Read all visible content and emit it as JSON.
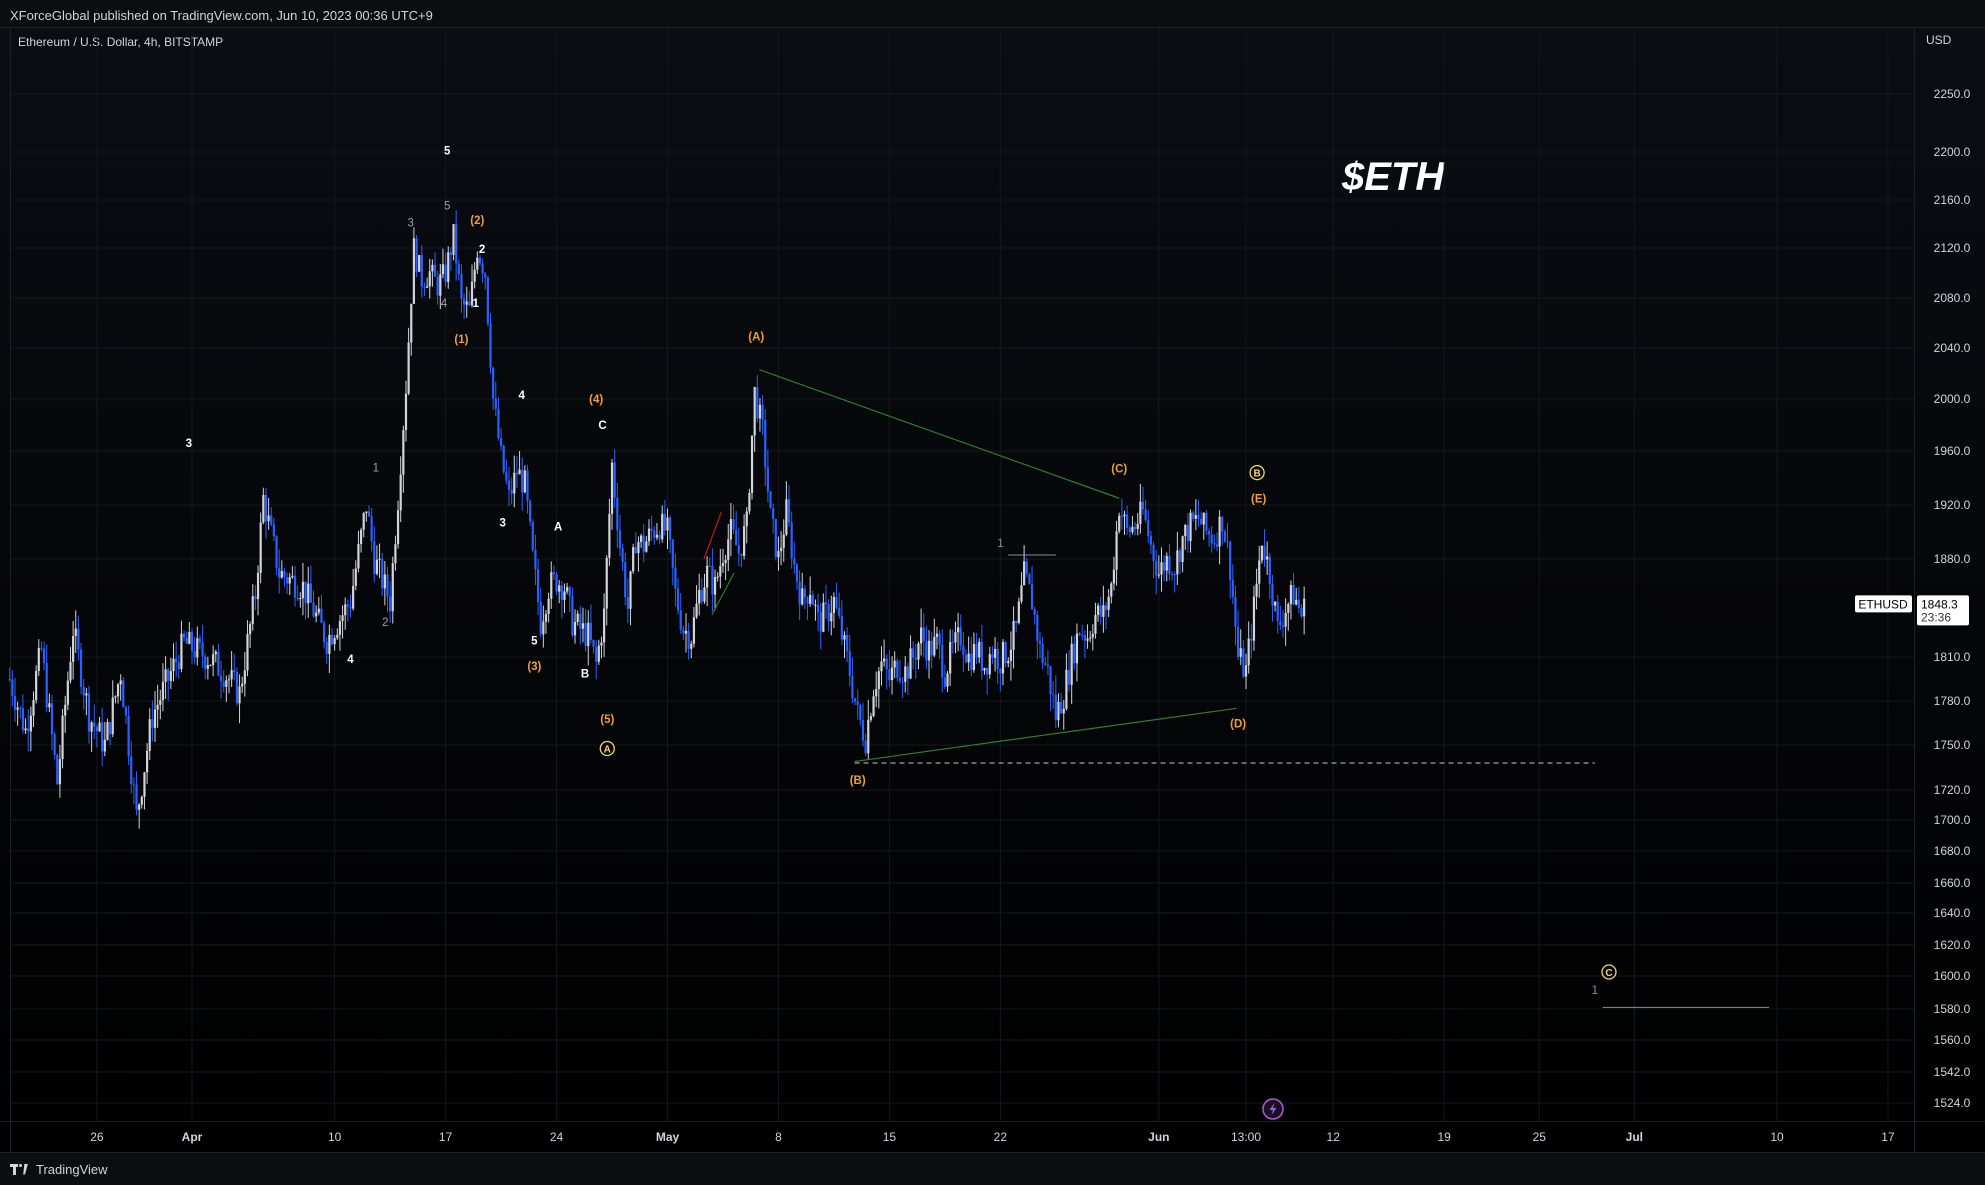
{
  "header": {
    "published_by": "XForceGlobal published on TradingView.com, Jun 10, 2023 00:36 UTC+9"
  },
  "footer": {
    "brand": "TradingView"
  },
  "chart_data": {
    "type": "candlestick",
    "symbol_line": "Ethereum / U.S. Dollar, 4h, BITSTAMP",
    "title": "$ETH",
    "currency": "USD",
    "ylim": [
      1515,
      2285
    ],
    "y_ticks": [
      {
        "label": "2250.0",
        "value": 2250
      },
      {
        "label": "2200.0",
        "value": 2200
      },
      {
        "label": "2160.0",
        "value": 2160
      },
      {
        "label": "2120.0",
        "value": 2120
      },
      {
        "label": "2080.0",
        "value": 2080
      },
      {
        "label": "2040.0",
        "value": 2040
      },
      {
        "label": "2000.0",
        "value": 2000
      },
      {
        "label": "1960.0",
        "value": 1960
      },
      {
        "label": "1920.0",
        "value": 1920
      },
      {
        "label": "1880.0",
        "value": 1880
      },
      {
        "label": "1810.0",
        "value": 1810
      },
      {
        "label": "1780.0",
        "value": 1780
      },
      {
        "label": "1750.0",
        "value": 1750
      },
      {
        "label": "1720.0",
        "value": 1720
      },
      {
        "label": "1700.0",
        "value": 1700
      },
      {
        "label": "1680.0",
        "value": 1680
      },
      {
        "label": "1660.0",
        "value": 1660
      },
      {
        "label": "1640.0",
        "value": 1640
      },
      {
        "label": "1620.0",
        "value": 1620
      },
      {
        "label": "1600.0",
        "value": 1600
      },
      {
        "label": "1580.0",
        "value": 1580
      },
      {
        "label": "1560.0",
        "value": 1560
      },
      {
        "label": "1542.0",
        "value": 1542
      },
      {
        "label": "1524.0",
        "value": 1524
      }
    ],
    "x_ticks": [
      {
        "label": "26",
        "day": -6,
        "bold": false
      },
      {
        "label": "Apr",
        "day": 0,
        "bold": true
      },
      {
        "label": "10",
        "day": 9,
        "bold": false
      },
      {
        "label": "17",
        "day": 16,
        "bold": false
      },
      {
        "label": "24",
        "day": 23,
        "bold": false
      },
      {
        "label": "May",
        "day": 30,
        "bold": true
      },
      {
        "label": "8",
        "day": 37,
        "bold": false
      },
      {
        "label": "15",
        "day": 44,
        "bold": false
      },
      {
        "label": "22",
        "day": 51,
        "bold": false
      },
      {
        "label": "Jun",
        "day": 61,
        "bold": true
      },
      {
        "label": "13:00",
        "day": 66.5,
        "bold": false
      },
      {
        "label": "12",
        "day": 72,
        "bold": false
      },
      {
        "label": "19",
        "day": 79,
        "bold": false
      },
      {
        "label": "25",
        "day": 85,
        "bold": false
      },
      {
        "label": "Jul",
        "day": 91,
        "bold": true
      },
      {
        "label": "10",
        "day": 100,
        "bold": false
      },
      {
        "label": "17",
        "day": 107,
        "bold": false
      }
    ],
    "price_path": [
      {
        "day": -11.5,
        "price": 1795
      },
      {
        "day": -10.5,
        "price": 1760
      },
      {
        "day": -9.5,
        "price": 1815
      },
      {
        "day": -8.5,
        "price": 1725
      },
      {
        "day": -7.5,
        "price": 1830
      },
      {
        "day": -6.5,
        "price": 1770
      },
      {
        "day": -5.5,
        "price": 1750
      },
      {
        "day": -4.5,
        "price": 1800
      },
      {
        "day": -3.5,
        "price": 1702
      },
      {
        "day": -2.5,
        "price": 1770
      },
      {
        "day": -1.5,
        "price": 1795
      },
      {
        "day": -0.5,
        "price": 1820
      },
      {
        "day": 1.0,
        "price": 1810
      },
      {
        "day": 2.0,
        "price": 1800
      },
      {
        "day": 3.0,
        "price": 1785
      },
      {
        "day": 4.0,
        "price": 1855
      },
      {
        "day": 4.5,
        "price": 1925
      },
      {
        "day": 5.5,
        "price": 1870
      },
      {
        "day": 7.0,
        "price": 1860
      },
      {
        "day": 8.5,
        "price": 1822
      },
      {
        "day": 10.0,
        "price": 1850
      },
      {
        "day": 11.0,
        "price": 1920
      },
      {
        "day": 11.5,
        "price": 1880
      },
      {
        "day": 12.5,
        "price": 1850
      },
      {
        "day": 13.0,
        "price": 1925
      },
      {
        "day": 13.5,
        "price": 2010
      },
      {
        "day": 14.0,
        "price": 2120
      },
      {
        "day": 14.5,
        "price": 2095
      },
      {
        "day": 15.0,
        "price": 2100
      },
      {
        "day": 15.5,
        "price": 2090
      },
      {
        "day": 16.0,
        "price": 2100
      },
      {
        "day": 16.5,
        "price": 2130
      },
      {
        "day": 17.0,
        "price": 2075
      },
      {
        "day": 17.5,
        "price": 2070
      },
      {
        "day": 18.0,
        "price": 2120
      },
      {
        "day": 18.5,
        "price": 2100
      },
      {
        "day": 19.0,
        "price": 2000
      },
      {
        "day": 19.5,
        "price": 1955
      },
      {
        "day": 20.0,
        "price": 1925
      },
      {
        "day": 20.5,
        "price": 1945
      },
      {
        "day": 21.0,
        "price": 1935
      },
      {
        "day": 21.5,
        "price": 1880
      },
      {
        "day": 22.0,
        "price": 1835
      },
      {
        "day": 22.5,
        "price": 1860
      },
      {
        "day": 23.0,
        "price": 1865
      },
      {
        "day": 23.5,
        "price": 1860
      },
      {
        "day": 24.0,
        "price": 1835
      },
      {
        "day": 25.0,
        "price": 1825
      },
      {
        "day": 25.5,
        "price": 1805
      },
      {
        "day": 26.0,
        "price": 1840
      },
      {
        "day": 26.5,
        "price": 1950
      },
      {
        "day": 27.0,
        "price": 1890
      },
      {
        "day": 27.5,
        "price": 1845
      },
      {
        "day": 28.0,
        "price": 1895
      },
      {
        "day": 28.5,
        "price": 1890
      },
      {
        "day": 29.0,
        "price": 1900
      },
      {
        "day": 29.5,
        "price": 1905
      },
      {
        "day": 30.0,
        "price": 1900
      },
      {
        "day": 30.5,
        "price": 1855
      },
      {
        "day": 31.0,
        "price": 1830
      },
      {
        "day": 31.5,
        "price": 1825
      },
      {
        "day": 32.0,
        "price": 1855
      },
      {
        "day": 32.5,
        "price": 1870
      },
      {
        "day": 33.0,
        "price": 1860
      },
      {
        "day": 33.5,
        "price": 1885
      },
      {
        "day": 34.0,
        "price": 1900
      },
      {
        "day": 34.5,
        "price": 1885
      },
      {
        "day": 35.0,
        "price": 1905
      },
      {
        "day": 35.5,
        "price": 2005
      },
      {
        "day": 36.0,
        "price": 1975
      },
      {
        "day": 36.5,
        "price": 1910
      },
      {
        "day": 37.0,
        "price": 1880
      },
      {
        "day": 37.5,
        "price": 1915
      },
      {
        "day": 38.0,
        "price": 1875
      },
      {
        "day": 38.5,
        "price": 1850
      },
      {
        "day": 39.0,
        "price": 1860
      },
      {
        "day": 39.5,
        "price": 1835
      },
      {
        "day": 40.0,
        "price": 1840
      },
      {
        "day": 40.5,
        "price": 1850
      },
      {
        "day": 41.0,
        "price": 1825
      },
      {
        "day": 41.5,
        "price": 1800
      },
      {
        "day": 42.0,
        "price": 1770
      },
      {
        "day": 42.5,
        "price": 1755
      },
      {
        "day": 43.0,
        "price": 1790
      },
      {
        "day": 43.5,
        "price": 1805
      },
      {
        "day": 44.0,
        "price": 1795
      },
      {
        "day": 44.5,
        "price": 1805
      },
      {
        "day": 45.0,
        "price": 1800
      },
      {
        "day": 45.5,
        "price": 1810
      },
      {
        "day": 46.0,
        "price": 1825
      },
      {
        "day": 46.5,
        "price": 1815
      },
      {
        "day": 47.0,
        "price": 1820
      },
      {
        "day": 47.5,
        "price": 1800
      },
      {
        "day": 48.0,
        "price": 1815
      },
      {
        "day": 48.5,
        "price": 1825
      },
      {
        "day": 49.0,
        "price": 1810
      },
      {
        "day": 49.5,
        "price": 1815
      },
      {
        "day": 50.0,
        "price": 1805
      },
      {
        "day": 50.5,
        "price": 1815
      },
      {
        "day": 51.0,
        "price": 1808
      },
      {
        "day": 51.5,
        "price": 1815
      },
      {
        "day": 52.0,
        "price": 1830
      },
      {
        "day": 52.5,
        "price": 1868
      },
      {
        "day": 53.0,
        "price": 1850
      },
      {
        "day": 53.5,
        "price": 1815
      },
      {
        "day": 54.0,
        "price": 1800
      },
      {
        "day": 54.5,
        "price": 1770
      },
      {
        "day": 55.0,
        "price": 1785
      },
      {
        "day": 55.5,
        "price": 1810
      },
      {
        "day": 56.0,
        "price": 1830
      },
      {
        "day": 56.5,
        "price": 1825
      },
      {
        "day": 57.0,
        "price": 1840
      },
      {
        "day": 57.5,
        "price": 1840
      },
      {
        "day": 58.0,
        "price": 1860
      },
      {
        "day": 58.5,
        "price": 1920
      },
      {
        "day": 59.0,
        "price": 1900
      },
      {
        "day": 59.5,
        "price": 1905
      },
      {
        "day": 60.0,
        "price": 1915
      },
      {
        "day": 60.5,
        "price": 1890
      },
      {
        "day": 61.0,
        "price": 1870
      },
      {
        "day": 61.5,
        "price": 1880
      },
      {
        "day": 62.0,
        "price": 1875
      },
      {
        "day": 62.5,
        "price": 1895
      },
      {
        "day": 63.0,
        "price": 1905
      },
      {
        "day": 63.5,
        "price": 1910
      },
      {
        "day": 64.0,
        "price": 1900
      },
      {
        "day": 64.5,
        "price": 1895
      },
      {
        "day": 65.0,
        "price": 1910
      },
      {
        "day": 65.5,
        "price": 1875
      },
      {
        "day": 66.0,
        "price": 1810
      },
      {
        "day": 66.5,
        "price": 1800
      },
      {
        "day": 67.0,
        "price": 1845
      },
      {
        "day": 67.5,
        "price": 1895
      },
      {
        "day": 68.0,
        "price": 1870
      },
      {
        "day": 68.5,
        "price": 1830
      },
      {
        "day": 69.0,
        "price": 1845
      },
      {
        "day": 69.5,
        "price": 1855
      },
      {
        "day": 70.0,
        "price": 1840
      },
      {
        "day": 70.3,
        "price": 1848
      }
    ],
    "trendlines": [
      {
        "name": "triangle-upper-line",
        "color": "#2e7d32",
        "from": {
          "day": 35.8,
          "price": 2023
        },
        "to": {
          "day": 58.5,
          "price": 1925
        }
      },
      {
        "name": "triangle-lower-line",
        "color": "#2e7d32",
        "from": {
          "day": 41.8,
          "price": 1739
        },
        "to": {
          "day": 65.9,
          "price": 1775
        }
      },
      {
        "name": "red-channel-line",
        "color": "#b71c1c",
        "from": {
          "day": 32.3,
          "price": 1880
        },
        "to": {
          "day": 33.4,
          "price": 1915
        }
      },
      {
        "name": "green-channel-line",
        "color": "#2e7d32",
        "from": {
          "day": 32.8,
          "price": 1840
        },
        "to": {
          "day": 34.2,
          "price": 1870
        }
      }
    ],
    "support_line": {
      "price": 1738,
      "from_day": 41.8,
      "to_day": 88.5,
      "color": "#cccccc"
    },
    "measure_lines": [
      {
        "price": 1883,
        "from_day": 51.5,
        "to_day": 54.5,
        "label": "1",
        "label_day": 50.8,
        "label_price": 1889
      },
      {
        "price": 1581,
        "from_day": 89.0,
        "to_day": 99.5,
        "label": "1",
        "label_day": 88.3,
        "label_price": 1589
      }
    ],
    "last_price": {
      "symbol": "ETHUSD",
      "price": "1848.3",
      "countdown": "23:36",
      "value": 1848.3
    },
    "wave_labels": [
      {
        "text": "3",
        "day": -0.2,
        "price": 1963,
        "color": "#ffffff",
        "bold": true
      },
      {
        "text": "4",
        "day": 10.0,
        "price": 1806,
        "color": "#ffffff",
        "bold": true
      },
      {
        "text": "1",
        "day": 11.6,
        "price": 1945,
        "color": "#a0a0a0",
        "bold": false
      },
      {
        "text": "2",
        "day": 12.2,
        "price": 1832,
        "color": "#a0a0a0",
        "bold": false
      },
      {
        "text": "3",
        "day": 13.8,
        "price": 2138,
        "color": "#a0a0a0",
        "bold": false
      },
      {
        "text": "5",
        "day": 16.1,
        "price": 2198,
        "color": "#ffffff",
        "bold": true
      },
      {
        "text": "5",
        "day": 16.1,
        "price": 2152,
        "color": "#a0a0a0",
        "bold": false
      },
      {
        "text": "4",
        "day": 15.9,
        "price": 2073,
        "color": "#a0a0a0",
        "bold": false
      },
      {
        "text": "(2)",
        "day": 18.0,
        "price": 2140,
        "color": "#f0a030",
        "bold": true
      },
      {
        "text": "2",
        "day": 18.3,
        "price": 2116,
        "color": "#ffffff",
        "bold": true
      },
      {
        "text": "1",
        "day": 17.9,
        "price": 2073,
        "color": "#ffffff",
        "bold": true
      },
      {
        "text": "(1)",
        "day": 17.0,
        "price": 2044,
        "color": "#f0a030",
        "bold": true
      },
      {
        "text": "4",
        "day": 20.8,
        "price": 2000,
        "color": "#ffffff",
        "bold": true
      },
      {
        "text": "3",
        "day": 19.6,
        "price": 1904,
        "color": "#ffffff",
        "bold": true
      },
      {
        "text": "A",
        "day": 23.1,
        "price": 1901,
        "color": "#ffffff",
        "bold": true
      },
      {
        "text": "5",
        "day": 21.6,
        "price": 1819,
        "color": "#ffffff",
        "bold": true
      },
      {
        "text": "(3)",
        "day": 21.6,
        "price": 1801,
        "color": "#f0a030",
        "bold": true
      },
      {
        "text": "(4)",
        "day": 25.5,
        "price": 1997,
        "color": "#f0a030",
        "bold": true
      },
      {
        "text": "C",
        "day": 25.9,
        "price": 1977,
        "color": "#ffffff",
        "bold": true
      },
      {
        "text": "B",
        "day": 24.8,
        "price": 1796,
        "color": "#ffffff",
        "bold": true
      },
      {
        "text": "(5)",
        "day": 26.2,
        "price": 1765,
        "color": "#f0a030",
        "bold": true
      },
      {
        "text": "(A)",
        "day": 35.6,
        "price": 2046,
        "color": "#f0a030",
        "bold": true
      },
      {
        "text": "1",
        "day": 51.0,
        "price": 1889,
        "color": "#a0a0a0",
        "bold": false
      },
      {
        "text": "(B)",
        "day": 42.0,
        "price": 1724,
        "color": "#f0a030",
        "bold": true
      },
      {
        "text": "(C)",
        "day": 58.5,
        "price": 1944,
        "color": "#f0a030",
        "bold": true
      },
      {
        "text": "(D)",
        "day": 66.0,
        "price": 1762,
        "color": "#f0a030",
        "bold": true
      },
      {
        "text": "(E)",
        "day": 67.3,
        "price": 1922,
        "color": "#f0a030",
        "bold": true
      }
    ],
    "circle_labels": [
      {
        "text": "A",
        "day": 26.2,
        "price": 1745,
        "color": "#f5d76e"
      },
      {
        "text": "B",
        "day": 67.2,
        "price": 1941,
        "color": "#f5d76e"
      },
      {
        "text": "C",
        "day": 89.4,
        "price": 1600,
        "color": "#f5d76e"
      }
    ]
  },
  "colors": {
    "candle_up": "#d1d4dc",
    "candle_down": "#2962ff",
    "background": "#000000",
    "panel": "#0c0d10",
    "grid": "#15171c"
  },
  "icons": {
    "lightning": "lightning-icon"
  }
}
